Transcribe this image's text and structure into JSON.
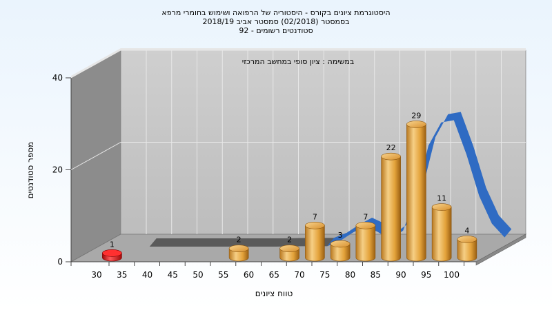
{
  "chart_data": {
    "type": "bar",
    "title_lines": [
      "היסטוגרמת ציונים בקורס - היסטוריה של הרפואה ושימוש בחומרי מרפא",
      "בסמסטר  (02/2018)  סמסטר אביב 2018/19",
      "סטודנטים רשומים - 92"
    ],
    "annotation": "במשימה : ציון סופי במחשב המרכזי",
    "xlabel": "טווח ציונים",
    "ylabel": "מספר סטודנטים",
    "x_ticks": [
      "30",
      "35",
      "40",
      "45",
      "50",
      "55",
      "60",
      "65",
      "70",
      "75",
      "80",
      "85",
      "90",
      "95",
      "100"
    ],
    "y_ticks": [
      "0",
      "20",
      "40"
    ],
    "ylim": [
      0,
      40
    ],
    "bars": [
      {
        "x": 32.5,
        "value": 1,
        "label": "1",
        "color": "red"
      },
      {
        "x": 57.5,
        "value": 2,
        "label": "2",
        "color": "orange"
      },
      {
        "x": 67.5,
        "value": 2,
        "label": "2",
        "color": "orange"
      },
      {
        "x": 72.5,
        "value": 7,
        "label": "7",
        "color": "orange"
      },
      {
        "x": 77.5,
        "value": 3,
        "label": "3",
        "color": "orange"
      },
      {
        "x": 82.5,
        "value": 7,
        "label": "7",
        "color": "orange"
      },
      {
        "x": 87.5,
        "value": 22,
        "label": "22",
        "color": "orange"
      },
      {
        "x": 92.5,
        "value": 29,
        "label": "29",
        "color": "orange"
      },
      {
        "x": 97.5,
        "value": 11,
        "label": "11",
        "color": "orange"
      },
      {
        "x": 102.5,
        "value": 4,
        "label": "4",
        "color": "orange"
      }
    ],
    "curve": {
      "x": [
        35,
        40,
        45,
        50,
        55,
        60,
        65,
        70,
        72.5,
        75,
        77.5,
        80,
        82.5,
        85,
        87.5,
        90,
        92.5,
        95,
        97.5,
        100,
        102.5,
        105
      ],
      "y": [
        0,
        0,
        0,
        0,
        0,
        0,
        0.1,
        0.1,
        1.2,
        3,
        4.5,
        3.2,
        1.5,
        3.5,
        11,
        22,
        27,
        27.5,
        20,
        11,
        5,
        2
      ],
      "color": "#2f6bc3",
      "band_color": "#5a5a5a"
    },
    "grid": true,
    "colors": {
      "back_wall": "#c8c8c8",
      "side_wall": "#8c8c8c",
      "floor": "#a9a9a9",
      "bar_orange": "#e3a23a",
      "bar_red": "#e01414"
    }
  }
}
